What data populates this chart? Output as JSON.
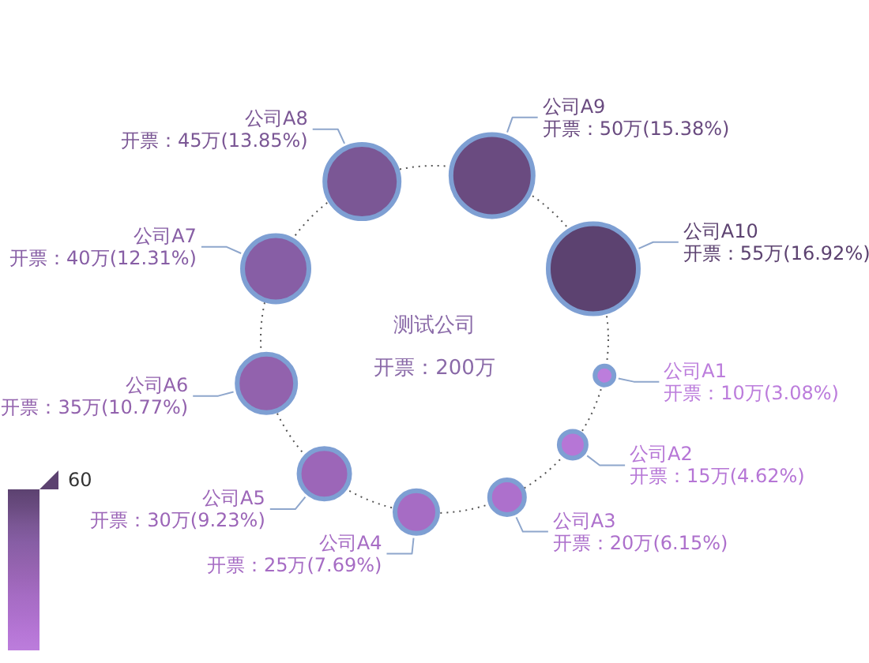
{
  "chart_data": {
    "type": "other",
    "title": "测试公司",
    "subtitle": "开票：200万",
    "categories": [
      "公司A1",
      "公司A2",
      "公司A3",
      "公司A4",
      "公司A5",
      "公司A6",
      "公司A7",
      "公司A8",
      "公司A9",
      "公司A10"
    ],
    "values": [
      10,
      15,
      20,
      25,
      30,
      35,
      40,
      45,
      50,
      55
    ],
    "value_labels": [
      "开票：10万(3.08%)",
      "开票：15万(4.62%)",
      "开票：20万(6.15%)",
      "开票：25万(7.69%)",
      "开票：30万(9.23%)",
      "开票：35万(10.77%)",
      "开票：40万(12.31%)",
      "开票：45万(13.85%)",
      "开票：50万(15.38%)",
      "开票：55万(16.92%)"
    ],
    "colors": [
      "#bc7ddc",
      "#b676d6",
      "#ad70cc",
      "#a66cc4",
      "#9c66b8",
      "#9262ad",
      "#875ea5",
      "#7b5795",
      "#6a4b80",
      "#5c4270"
    ],
    "annotations": [
      "60"
    ]
  }
}
